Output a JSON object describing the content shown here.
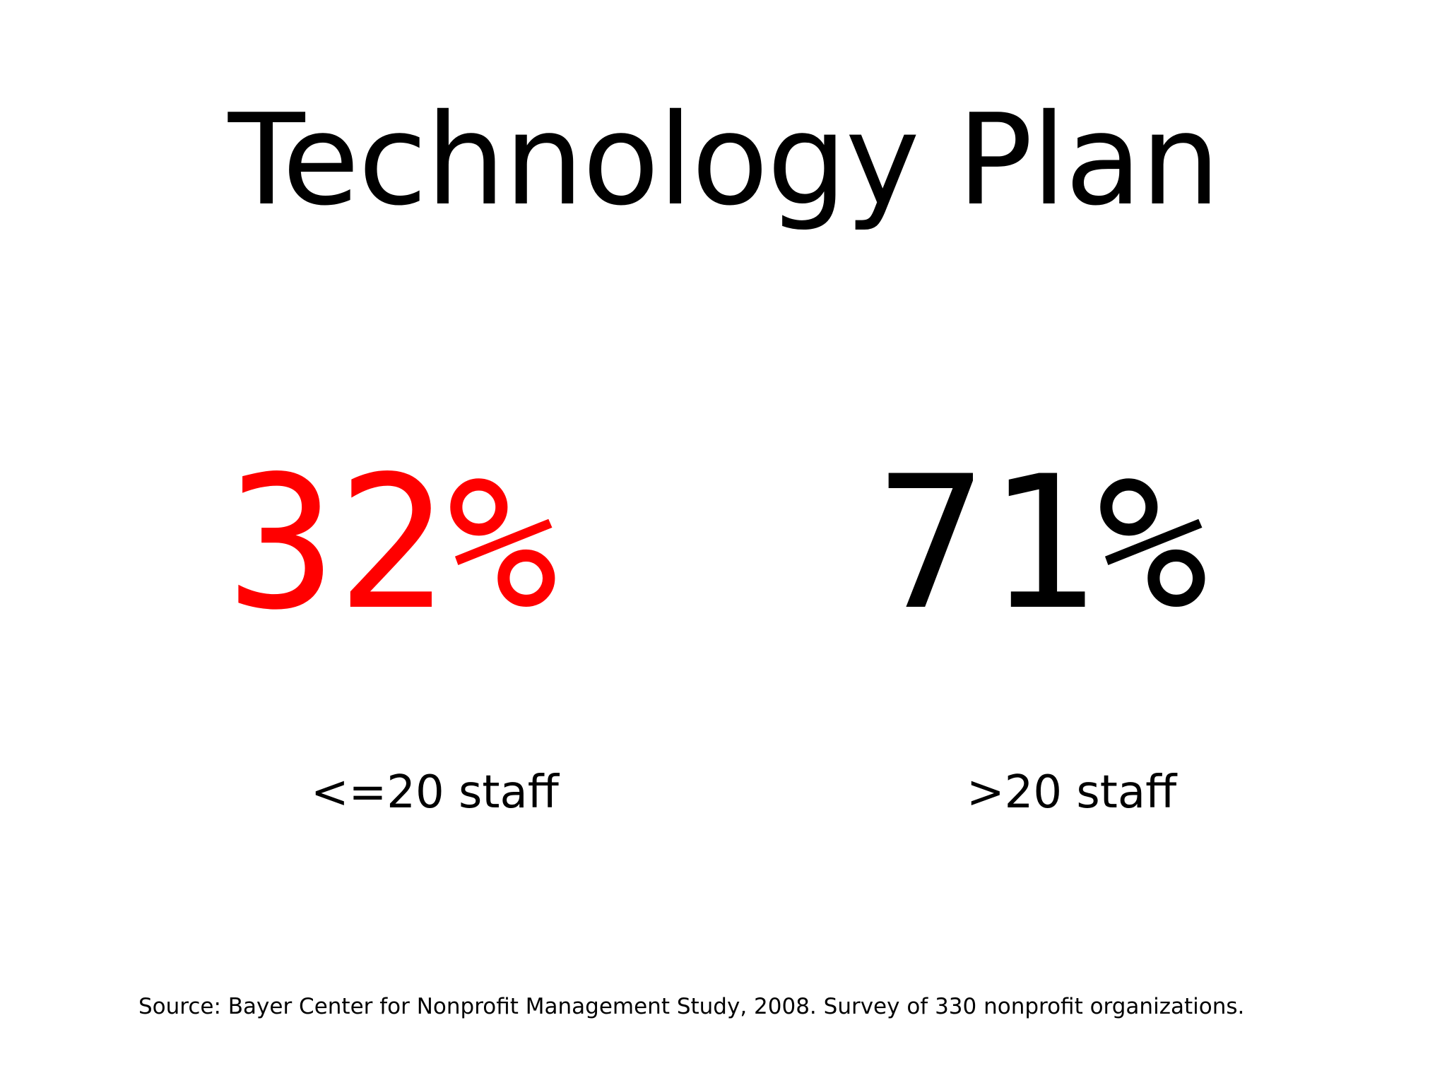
{
  "slide": {
    "title": "Technology Plan",
    "stats": [
      {
        "value": "32%",
        "label": "<=20 staff",
        "color": "#ff0000"
      },
      {
        "value": "71%",
        "label": ">20 staff",
        "color": "#000000"
      }
    ],
    "source": "Source: Bayer Center for Nonprofit Management Study, 2008. Survey of 330 nonprofit organizations."
  }
}
